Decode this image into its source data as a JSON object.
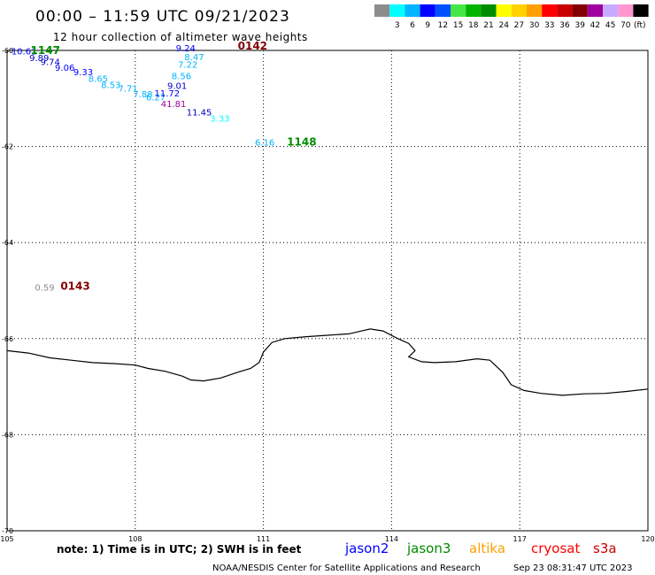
{
  "header": {
    "title": "00:00 – 11:59 UTC 09/21/2023",
    "subtitle": "12 hour collection of altimeter wave heights"
  },
  "legend": {
    "unit": "(ft)",
    "bins": [
      {
        "label": "",
        "color": "#8c8c8c"
      },
      {
        "label": "3",
        "color": "#00ffff"
      },
      {
        "label": "6",
        "color": "#00b4ff"
      },
      {
        "label": "9",
        "color": "#0000ff"
      },
      {
        "label": "12",
        "color": "#0050ff"
      },
      {
        "label": "15",
        "color": "#46e646"
      },
      {
        "label": "18",
        "color": "#00b400"
      },
      {
        "label": "21",
        "color": "#008c00"
      },
      {
        "label": "24",
        "color": "#ffff00"
      },
      {
        "label": "27",
        "color": "#ffd200"
      },
      {
        "label": "30",
        "color": "#ffa000"
      },
      {
        "label": "33",
        "color": "#ff0000"
      },
      {
        "label": "36",
        "color": "#c80000"
      },
      {
        "label": "39",
        "color": "#820000"
      },
      {
        "label": "42",
        "color": "#a000a0"
      },
      {
        "label": "45",
        "color": "#c8aaff"
      },
      {
        "label": "70",
        "color": "#ff96d2"
      },
      {
        "label": "",
        "color": "#000000"
      }
    ]
  },
  "chart_data": {
    "type": "scatter",
    "xlim": [
      105,
      120
    ],
    "ylim": [
      -60,
      -70
    ],
    "x_ticks": [
      105,
      108,
      111,
      114,
      117,
      120
    ],
    "y_ticks": [
      -60,
      -62,
      -64,
      -66,
      -68,
      -70
    ],
    "x_tick_labels": [
      "105",
      "108",
      "111",
      "114",
      "117",
      "120"
    ],
    "y_tick_labels": [
      "-60",
      "-62",
      "-64",
      "-66",
      "-68",
      "-70"
    ],
    "grid": true,
    "points": [
      {
        "x": 105.1,
        "y": -60.08,
        "label": "10.61",
        "color": "#0000ff"
      },
      {
        "x": 105.52,
        "y": -60.22,
        "label": "9.89",
        "color": "#0000c8"
      },
      {
        "x": 105.78,
        "y": -60.3,
        "label": "9.74",
        "color": "#0000c8"
      },
      {
        "x": 106.12,
        "y": -60.42,
        "label": "9.06",
        "color": "#0000ff"
      },
      {
        "x": 106.55,
        "y": -60.52,
        "label": "9.33",
        "color": "#0000ff"
      },
      {
        "x": 106.9,
        "y": -60.65,
        "label": "8.65",
        "color": "#00b4ff"
      },
      {
        "x": 107.2,
        "y": -60.78,
        "label": "8.53",
        "color": "#00b4ff"
      },
      {
        "x": 107.6,
        "y": -60.86,
        "label": "7.71",
        "color": "#00b4ff"
      },
      {
        "x": 107.95,
        "y": -60.98,
        "label": "7.88",
        "color": "#00b4ff"
      },
      {
        "x": 108.25,
        "y": -61.04,
        "label": "6.27",
        "color": "#00b4ff"
      },
      {
        "x": 108.45,
        "y": -60.96,
        "label": "11.72",
        "color": "#0000ff"
      },
      {
        "x": 108.95,
        "y": -60.02,
        "label": "9.24",
        "color": "#0000ff"
      },
      {
        "x": 109.15,
        "y": -60.2,
        "label": "8.47",
        "color": "#00b4ff"
      },
      {
        "x": 109.0,
        "y": -60.36,
        "label": "7.22",
        "color": "#00b4ff"
      },
      {
        "x": 108.85,
        "y": -60.6,
        "label": "8.56",
        "color": "#00b4ff"
      },
      {
        "x": 108.75,
        "y": -60.8,
        "label": "9.01",
        "color": "#0000c8"
      },
      {
        "x": 108.6,
        "y": -61.18,
        "label": "41.81",
        "color": "#a000a0"
      },
      {
        "x": 109.2,
        "y": -61.35,
        "label": "11.45",
        "color": "#0000c8"
      },
      {
        "x": 109.75,
        "y": -61.48,
        "label": "3.33",
        "color": "#00ffff"
      },
      {
        "x": 110.8,
        "y": -61.98,
        "label": "6.16",
        "color": "#00b4ff"
      },
      {
        "x": 105.65,
        "y": -65.0,
        "label": "0.59",
        "color": "#8c8c8c"
      }
    ],
    "passes": [
      {
        "x": 105.55,
        "y": -60.07,
        "label": "1147",
        "color": "#008c00"
      },
      {
        "x": 110.4,
        "y": -59.98,
        "label": "0142",
        "color": "#820000"
      },
      {
        "x": 111.55,
        "y": -61.98,
        "label": "1148",
        "color": "#008c00"
      },
      {
        "x": 106.25,
        "y": -64.98,
        "label": "0143",
        "color": "#820000"
      }
    ],
    "coastline": [
      [
        105,
        -66.25
      ],
      [
        105.5,
        -66.3
      ],
      [
        106,
        -66.4
      ],
      [
        106.5,
        -66.45
      ],
      [
        107,
        -66.5
      ],
      [
        107.5,
        -66.52
      ],
      [
        108,
        -66.55
      ],
      [
        108.3,
        -66.62
      ],
      [
        108.7,
        -66.68
      ],
      [
        109.1,
        -66.78
      ],
      [
        109.3,
        -66.86
      ],
      [
        109.6,
        -66.88
      ],
      [
        110,
        -66.82
      ],
      [
        110.4,
        -66.7
      ],
      [
        110.7,
        -66.62
      ],
      [
        110.9,
        -66.5
      ],
      [
        111,
        -66.28
      ],
      [
        111.2,
        -66.08
      ],
      [
        111.5,
        -66.0
      ],
      [
        112,
        -65.96
      ],
      [
        112.5,
        -65.93
      ],
      [
        113,
        -65.9
      ],
      [
        113.3,
        -65.84
      ],
      [
        113.5,
        -65.8
      ],
      [
        113.8,
        -65.84
      ],
      [
        114.1,
        -65.98
      ],
      [
        114.4,
        -66.1
      ],
      [
        114.55,
        -66.25
      ],
      [
        114.4,
        -66.38
      ],
      [
        114.7,
        -66.48
      ],
      [
        115,
        -66.5
      ],
      [
        115.5,
        -66.48
      ],
      [
        116,
        -66.42
      ],
      [
        116.3,
        -66.45
      ],
      [
        116.6,
        -66.7
      ],
      [
        116.8,
        -66.96
      ],
      [
        117.1,
        -67.08
      ],
      [
        117.5,
        -67.14
      ],
      [
        118,
        -67.18
      ],
      [
        118.5,
        -67.15
      ],
      [
        119,
        -67.14
      ],
      [
        119.5,
        -67.1
      ],
      [
        120,
        -67.05
      ]
    ],
    "note": "note: 1) Time is in UTC; 2) SWH is in feet",
    "satellites": [
      {
        "name": "jason2",
        "color": "#0000ff"
      },
      {
        "name": "jason3",
        "color": "#008c00"
      },
      {
        "name": "altika",
        "color": "#ffa000"
      },
      {
        "name": "cryosat",
        "color": "#ff0000"
      },
      {
        "name": "s3a",
        "color": "#c80000"
      }
    ]
  },
  "footer": {
    "credit": "NOAA/NESDIS Center for Satellite Applications and Research",
    "timestamp": "Sep 23 08:31:47 UTC 2023"
  }
}
